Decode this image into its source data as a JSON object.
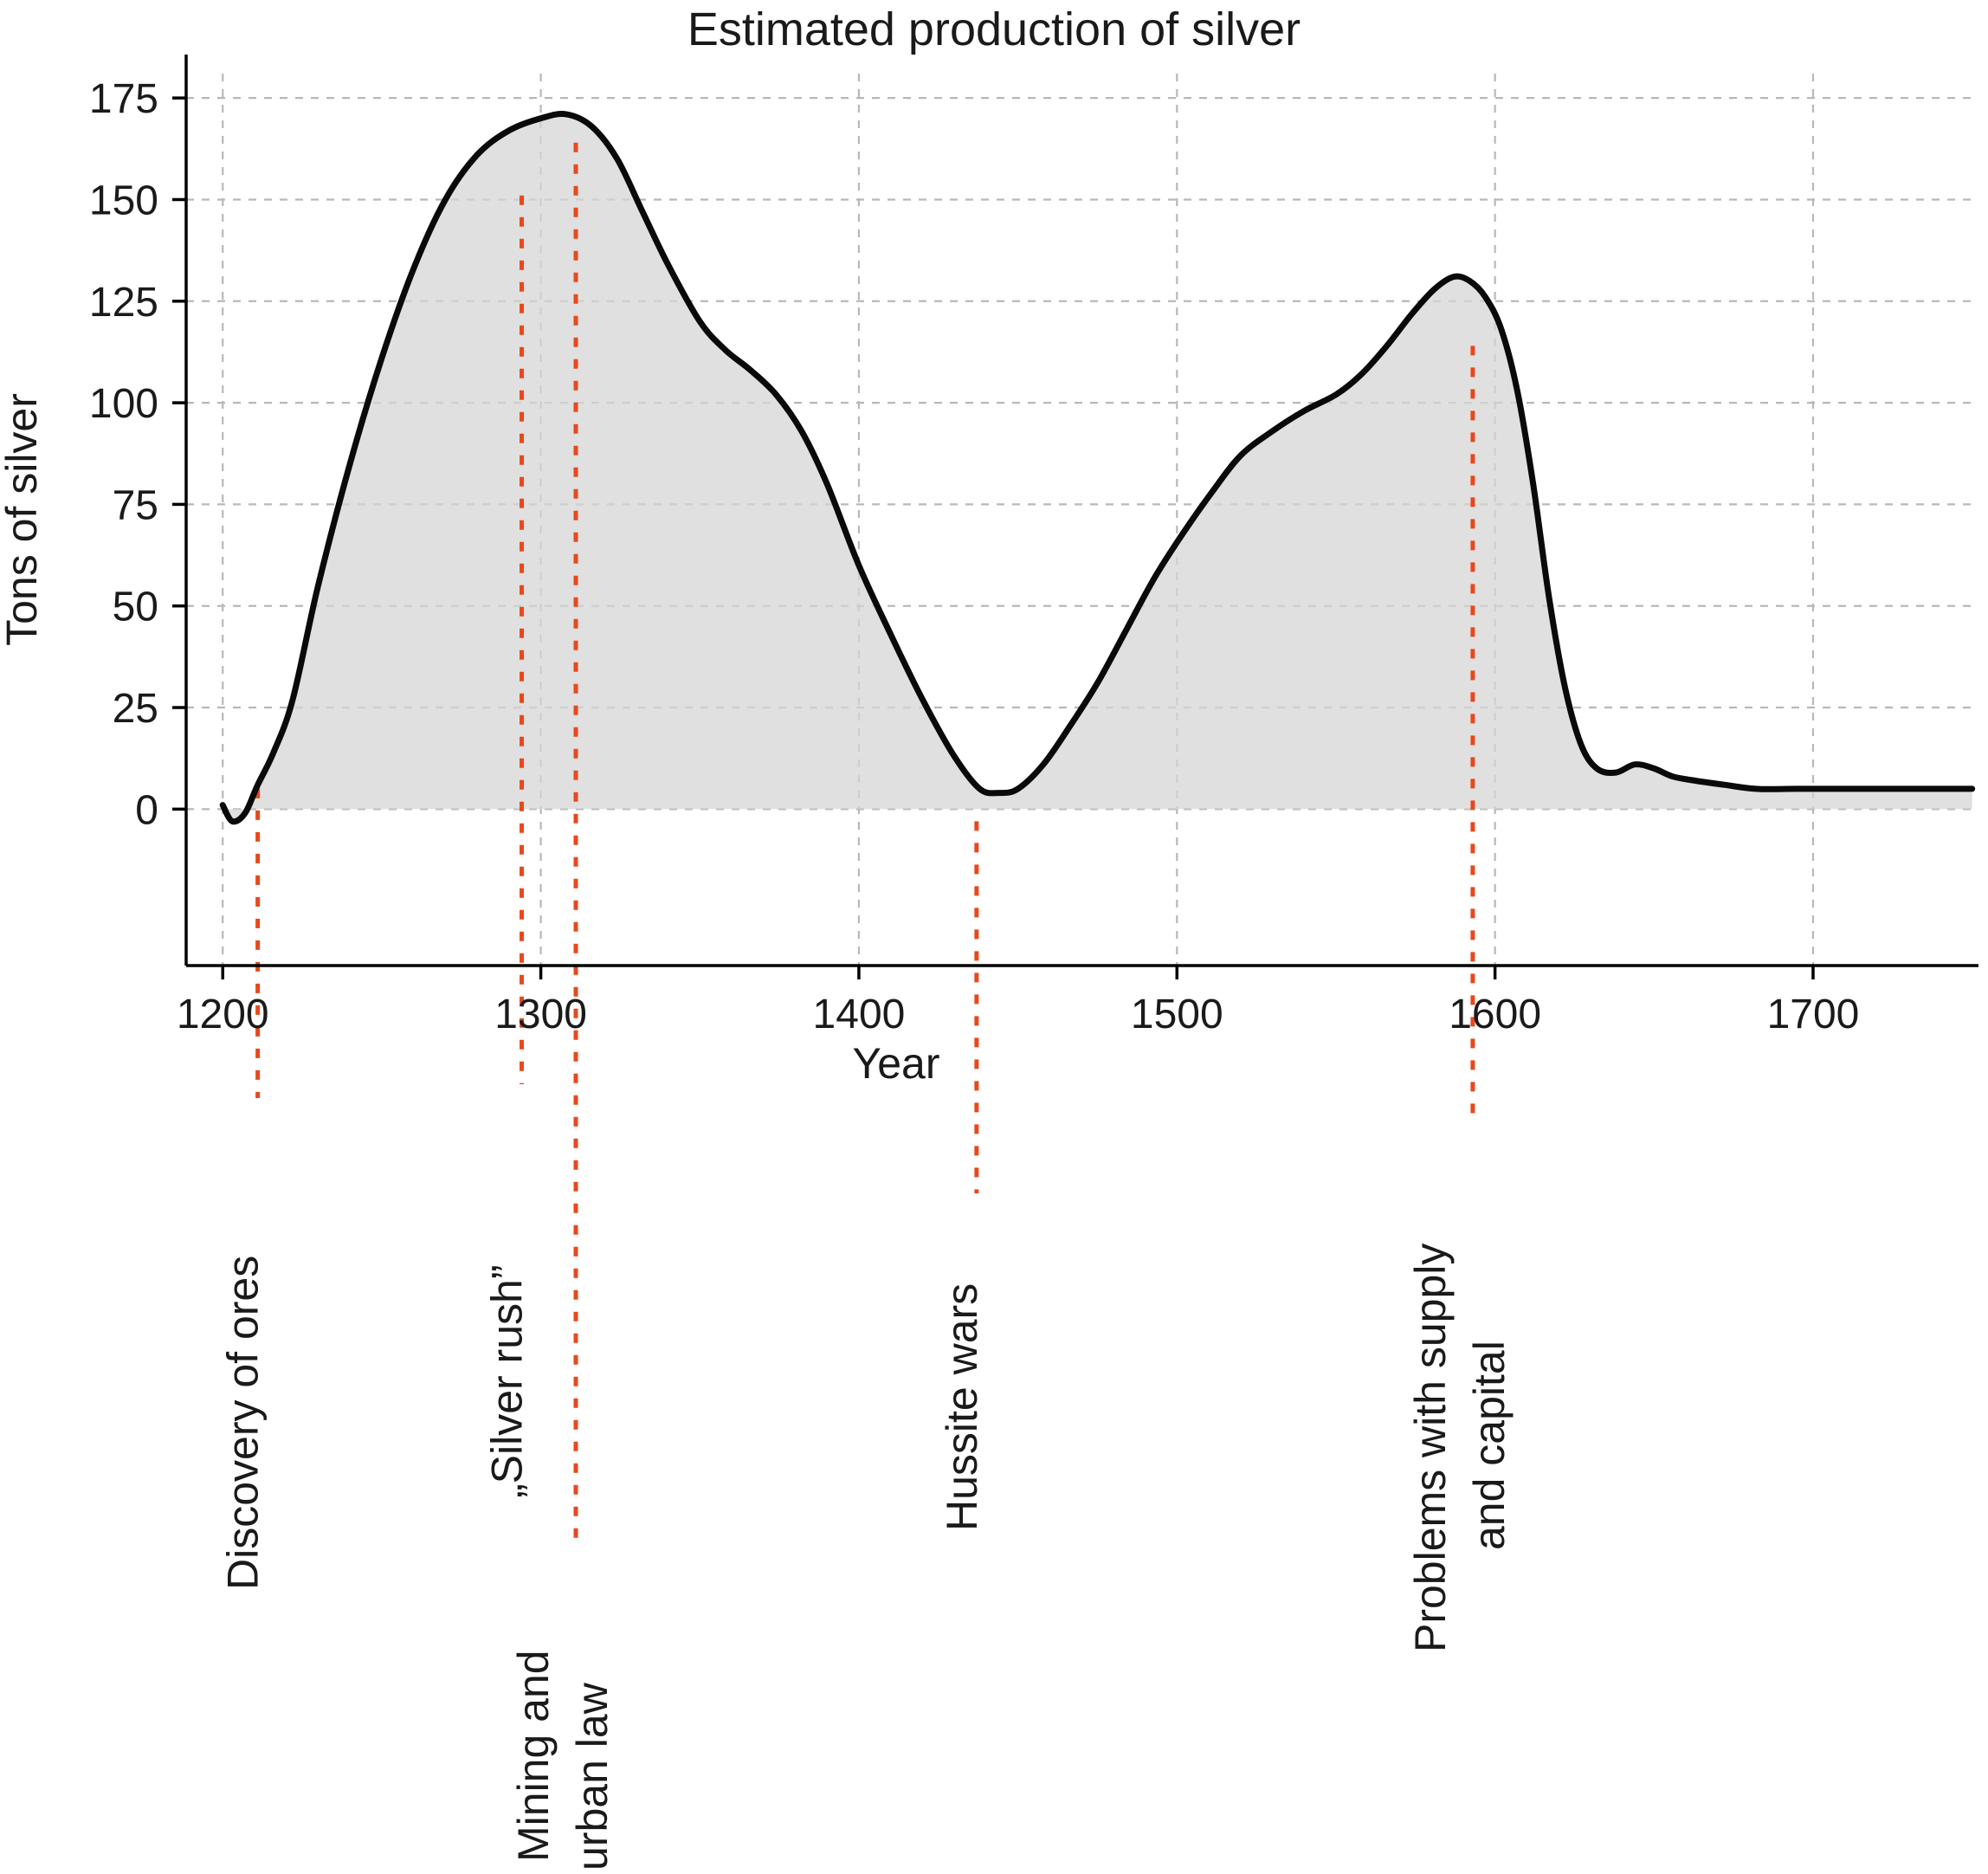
{
  "chart_data": {
    "type": "area",
    "title": "Estimated production of silver",
    "xlabel": "Year",
    "ylabel": "Tons of silver",
    "xlim": [
      1188.5,
      1752
    ],
    "ylim": [
      -38.5,
      181
    ],
    "xticks": [
      1200,
      1300,
      1400,
      1500,
      1600,
      1700
    ],
    "yticks": [
      0,
      25,
      50,
      75,
      100,
      125,
      150,
      175
    ],
    "grid": true,
    "legend": "none",
    "series": [
      {
        "name": "silver-production",
        "x": [
          1200,
          1203,
          1207,
          1211,
          1216,
          1222,
          1230,
          1240,
          1250,
          1260,
          1270,
          1280,
          1290,
          1300,
          1308,
          1316,
          1324,
          1332,
          1340,
          1350,
          1358,
          1366,
          1374,
          1382,
          1390,
          1400,
          1410,
          1420,
          1430,
          1438,
          1444,
          1450,
          1458,
          1466,
          1475,
          1484,
          1493,
          1502,
          1511,
          1520,
          1530,
          1540,
          1550,
          1558,
          1566,
          1574,
          1581,
          1587,
          1592,
          1597,
          1602,
          1607,
          1612,
          1617,
          1622,
          1627,
          1632,
          1638,
          1644,
          1650,
          1656,
          1663,
          1672,
          1682,
          1695,
          1710,
          1730,
          1750
        ],
        "y": [
          1,
          -3,
          -1,
          6,
          14,
          27,
          55,
          85,
          111,
          133,
          150,
          161,
          167,
          170,
          171,
          168,
          160,
          147,
          134,
          120,
          113,
          108,
          102,
          93,
          80,
          60,
          43,
          27,
          13,
          5,
          4,
          5,
          11,
          20,
          31,
          44,
          57,
          68,
          78,
          87,
          93,
          98,
          102,
          107,
          114,
          122,
          128,
          131,
          130,
          126,
          118,
          103,
          80,
          52,
          30,
          16,
          10,
          9,
          11,
          10,
          8,
          7,
          6,
          5,
          5,
          5,
          5,
          5
        ]
      }
    ],
    "annotations": [
      {
        "year": 1211,
        "tip_value": 5,
        "line_end_y": 1268,
        "label_lines": [
          {
            "text": "Discovery of ores",
            "x_offset": 0,
            "bottom_y": 1836
          }
        ]
      },
      {
        "year": 1294,
        "tip_value": 151,
        "line_end_y": 1252,
        "label_lines": [
          {
            "text": "„Silver rush”",
            "x_offset": 0,
            "bottom_y": 1730
          }
        ]
      },
      {
        "year": 1311,
        "tip_value": 164,
        "line_end_y": 1778,
        "label_lines": [
          {
            "text": "Mining and",
            "x_offset": -32,
            "bottom_y": 2150
          },
          {
            "text": "urban law",
            "x_offset": 36,
            "bottom_y": 2160
          }
        ]
      },
      {
        "year": 1437,
        "tip_value": -3,
        "line_end_y": 1378,
        "label_lines": [
          {
            "text": "Hussite wars",
            "x_offset": 0,
            "bottom_y": 1768
          }
        ]
      },
      {
        "year": 1593,
        "tip_value": 114,
        "line_end_y": 1296,
        "label_lines": [
          {
            "text": "Problems with supply",
            "x_offset": -32,
            "bottom_y": 1908
          },
          {
            "text": "and capital",
            "x_offset": 36,
            "bottom_y": 1790
          }
        ]
      }
    ],
    "colors": {
      "line": "#0a0a0a",
      "fill": "#d6d6d6",
      "annotation": "#e8481c",
      "grid": "#b8b8b8",
      "axis": "#000000",
      "text": "#1a1a1a"
    }
  }
}
